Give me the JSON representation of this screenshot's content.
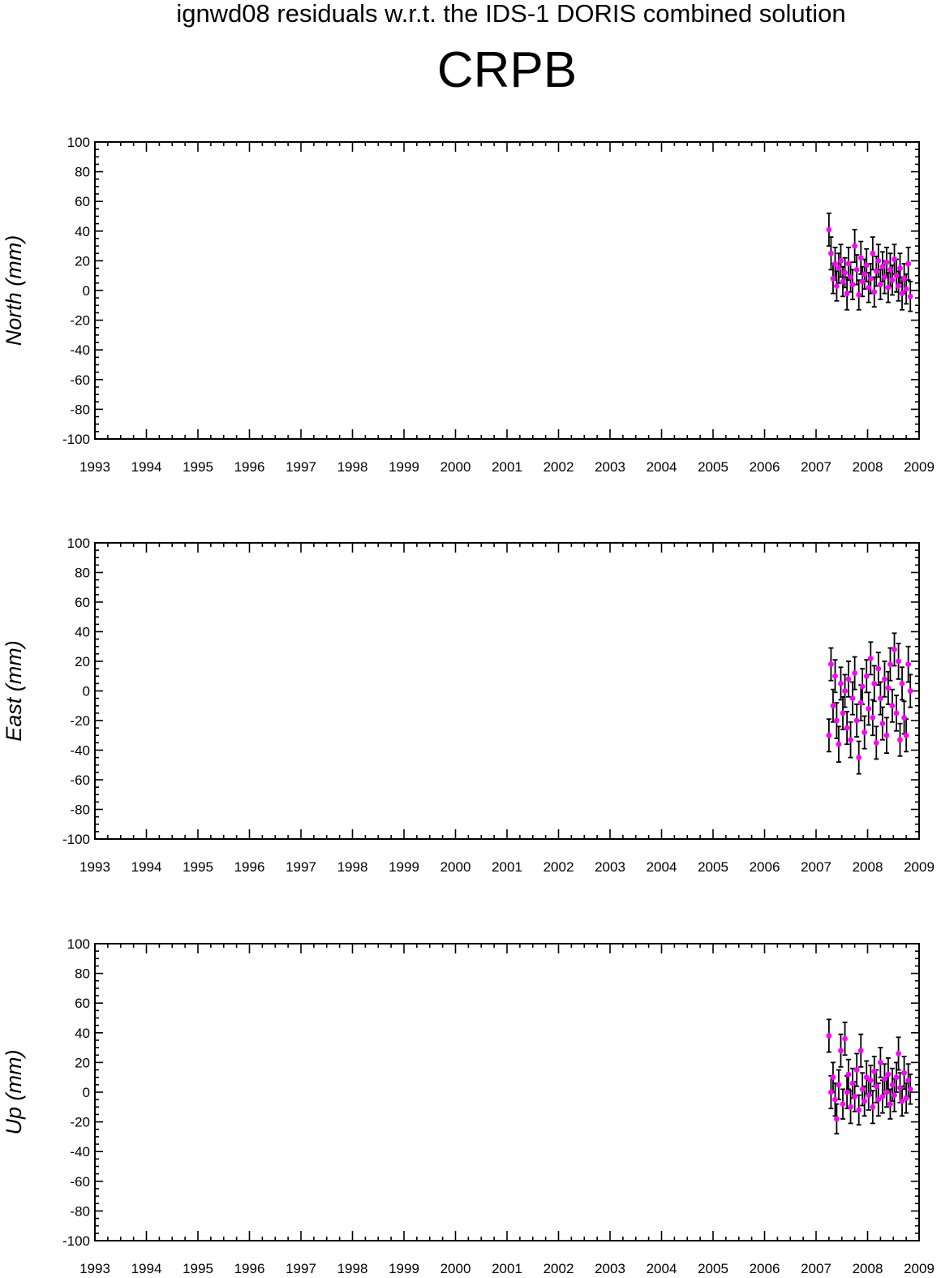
{
  "suptitle": "ignwd08 residuals w.r.t. the IDS-1 DORIS combined solution",
  "station": "CRPB",
  "colors": {
    "residual": "#ff00ff",
    "error_bar": "#000000",
    "axis": "#000000"
  },
  "chart_data": [
    {
      "type": "scatter",
      "ylabel": "North (mm)",
      "ylim": [
        -100,
        100
      ],
      "xlim": [
        1993,
        2009
      ],
      "yticks": [
        "100",
        "80",
        "60",
        "40",
        "20",
        "0",
        "-20",
        "-40",
        "-60",
        "-80",
        "-100"
      ],
      "xticks": [
        "1993",
        "1994",
        "1995",
        "1996",
        "1997",
        "1998",
        "1999",
        "2000",
        "2001",
        "2002",
        "2003",
        "2004",
        "2005",
        "2006",
        "2007",
        "2008",
        "2009"
      ],
      "grid": false,
      "error_bars": true,
      "series": [
        {
          "x": [
            2007.25,
            2007.29,
            2007.33,
            2007.37,
            2007.4,
            2007.44,
            2007.48,
            2007.52,
            2007.56,
            2007.6,
            2007.63,
            2007.67,
            2007.71,
            2007.75,
            2007.79,
            2007.83,
            2007.87,
            2007.9,
            2007.94,
            2007.98,
            2008.02,
            2008.06,
            2008.1,
            2008.13,
            2008.17,
            2008.21,
            2008.25,
            2008.29,
            2008.33,
            2008.37,
            2008.4,
            2008.44,
            2008.48,
            2008.52,
            2008.56,
            2008.6,
            2008.63,
            2008.67,
            2008.71,
            2008.75,
            2008.79,
            2008.83
          ],
          "y": [
            41,
            25,
            8,
            18,
            3,
            15,
            20,
            6,
            12,
            -2,
            18,
            9,
            4,
            30,
            14,
            -3,
            22,
            6,
            11,
            17,
            2,
            8,
            25,
            -1,
            13,
            20,
            4,
            16,
            9,
            19,
            2,
            14,
            7,
            21,
            10,
            3,
            15,
            -2,
            8,
            1,
            18,
            -4
          ],
          "err": [
            11,
            11,
            10,
            11,
            10,
            10,
            11,
            10,
            10,
            11,
            11,
            10,
            10,
            11,
            10,
            10,
            11,
            10,
            10,
            11,
            10,
            10,
            11,
            10,
            10,
            11,
            10,
            10,
            11,
            10,
            10,
            11,
            10,
            10,
            11,
            10,
            10,
            11,
            10,
            10,
            11,
            10
          ]
        }
      ]
    },
    {
      "type": "scatter",
      "ylabel": "East (mm)",
      "ylim": [
        -100,
        100
      ],
      "xlim": [
        1993,
        2009
      ],
      "yticks": [
        "100",
        "80",
        "60",
        "40",
        "20",
        "0",
        "-20",
        "-40",
        "-60",
        "-80",
        "-100"
      ],
      "xticks": [
        "1993",
        "1994",
        "1995",
        "1996",
        "1997",
        "1998",
        "1999",
        "2000",
        "2001",
        "2002",
        "2003",
        "2004",
        "2005",
        "2006",
        "2007",
        "2008",
        "2009"
      ],
      "grid": false,
      "error_bars": true,
      "series": [
        {
          "x": [
            2007.25,
            2007.29,
            2007.33,
            2007.37,
            2007.4,
            2007.44,
            2007.48,
            2007.52,
            2007.56,
            2007.6,
            2007.63,
            2007.67,
            2007.71,
            2007.75,
            2007.79,
            2007.83,
            2007.87,
            2007.9,
            2007.94,
            2007.98,
            2008.02,
            2008.06,
            2008.1,
            2008.13,
            2008.17,
            2008.21,
            2008.25,
            2008.29,
            2008.33,
            2008.37,
            2008.4,
            2008.44,
            2008.48,
            2008.52,
            2008.56,
            2008.6,
            2008.63,
            2008.67,
            2008.71,
            2008.75,
            2008.79,
            2008.83
          ],
          "y": [
            -30,
            18,
            -10,
            10,
            -20,
            -36,
            5,
            -15,
            0,
            -25,
            8,
            -33,
            -5,
            12,
            -20,
            -45,
            -8,
            3,
            -28,
            10,
            -12,
            22,
            -18,
            5,
            -35,
            15,
            -5,
            -22,
            8,
            -30,
            2,
            18,
            -10,
            28,
            -15,
            20,
            -33,
            5,
            -18,
            -30,
            18,
            0
          ],
          "err": [
            11,
            11,
            11,
            11,
            12,
            12,
            11,
            11,
            11,
            11,
            12,
            12,
            11,
            11,
            11,
            11,
            12,
            12,
            11,
            11,
            11,
            11,
            12,
            12,
            11,
            11,
            11,
            11,
            12,
            12,
            11,
            11,
            11,
            11,
            12,
            12,
            11,
            11,
            11,
            11,
            12,
            11
          ]
        }
      ]
    },
    {
      "type": "scatter",
      "ylabel": "Up (mm)",
      "ylim": [
        -100,
        100
      ],
      "xlim": [
        1993,
        2009
      ],
      "yticks": [
        "100",
        "80",
        "60",
        "40",
        "20",
        "0",
        "-20",
        "-40",
        "-60",
        "-80",
        "-100"
      ],
      "xticks": [
        "1993",
        "1994",
        "1995",
        "1996",
        "1997",
        "1998",
        "1999",
        "2000",
        "2001",
        "2002",
        "2003",
        "2004",
        "2005",
        "2006",
        "2007",
        "2008",
        "2009"
      ],
      "grid": false,
      "error_bars": true,
      "series": [
        {
          "x": [
            2007.25,
            2007.29,
            2007.33,
            2007.37,
            2007.4,
            2007.44,
            2007.48,
            2007.52,
            2007.56,
            2007.6,
            2007.63,
            2007.67,
            2007.71,
            2007.75,
            2007.79,
            2007.83,
            2007.87,
            2007.9,
            2007.94,
            2007.98,
            2008.02,
            2008.06,
            2008.1,
            2008.13,
            2008.17,
            2008.21,
            2008.25,
            2008.29,
            2008.33,
            2008.37,
            2008.4,
            2008.44,
            2008.48,
            2008.52,
            2008.56,
            2008.6,
            2008.63,
            2008.67,
            2008.71,
            2008.75,
            2008.79,
            2008.83
          ],
          "y": [
            38,
            0,
            10,
            -5,
            -18,
            5,
            28,
            -8,
            36,
            0,
            12,
            -10,
            6,
            -3,
            15,
            -12,
            28,
            2,
            -6,
            10,
            -2,
            8,
            -10,
            14,
            4,
            -5,
            20,
            -3,
            9,
            0,
            12,
            -8,
            5,
            -2,
            10,
            26,
            3,
            -6,
            13,
            -4,
            8,
            2
          ],
          "err": [
            11,
            11,
            10,
            11,
            10,
            10,
            11,
            10,
            11,
            11,
            10,
            11,
            10,
            10,
            11,
            10,
            11,
            11,
            10,
            11,
            10,
            10,
            11,
            10,
            11,
            11,
            10,
            11,
            10,
            10,
            11,
            10,
            11,
            11,
            10,
            11,
            10,
            10,
            11,
            10,
            11,
            10
          ]
        }
      ]
    }
  ]
}
